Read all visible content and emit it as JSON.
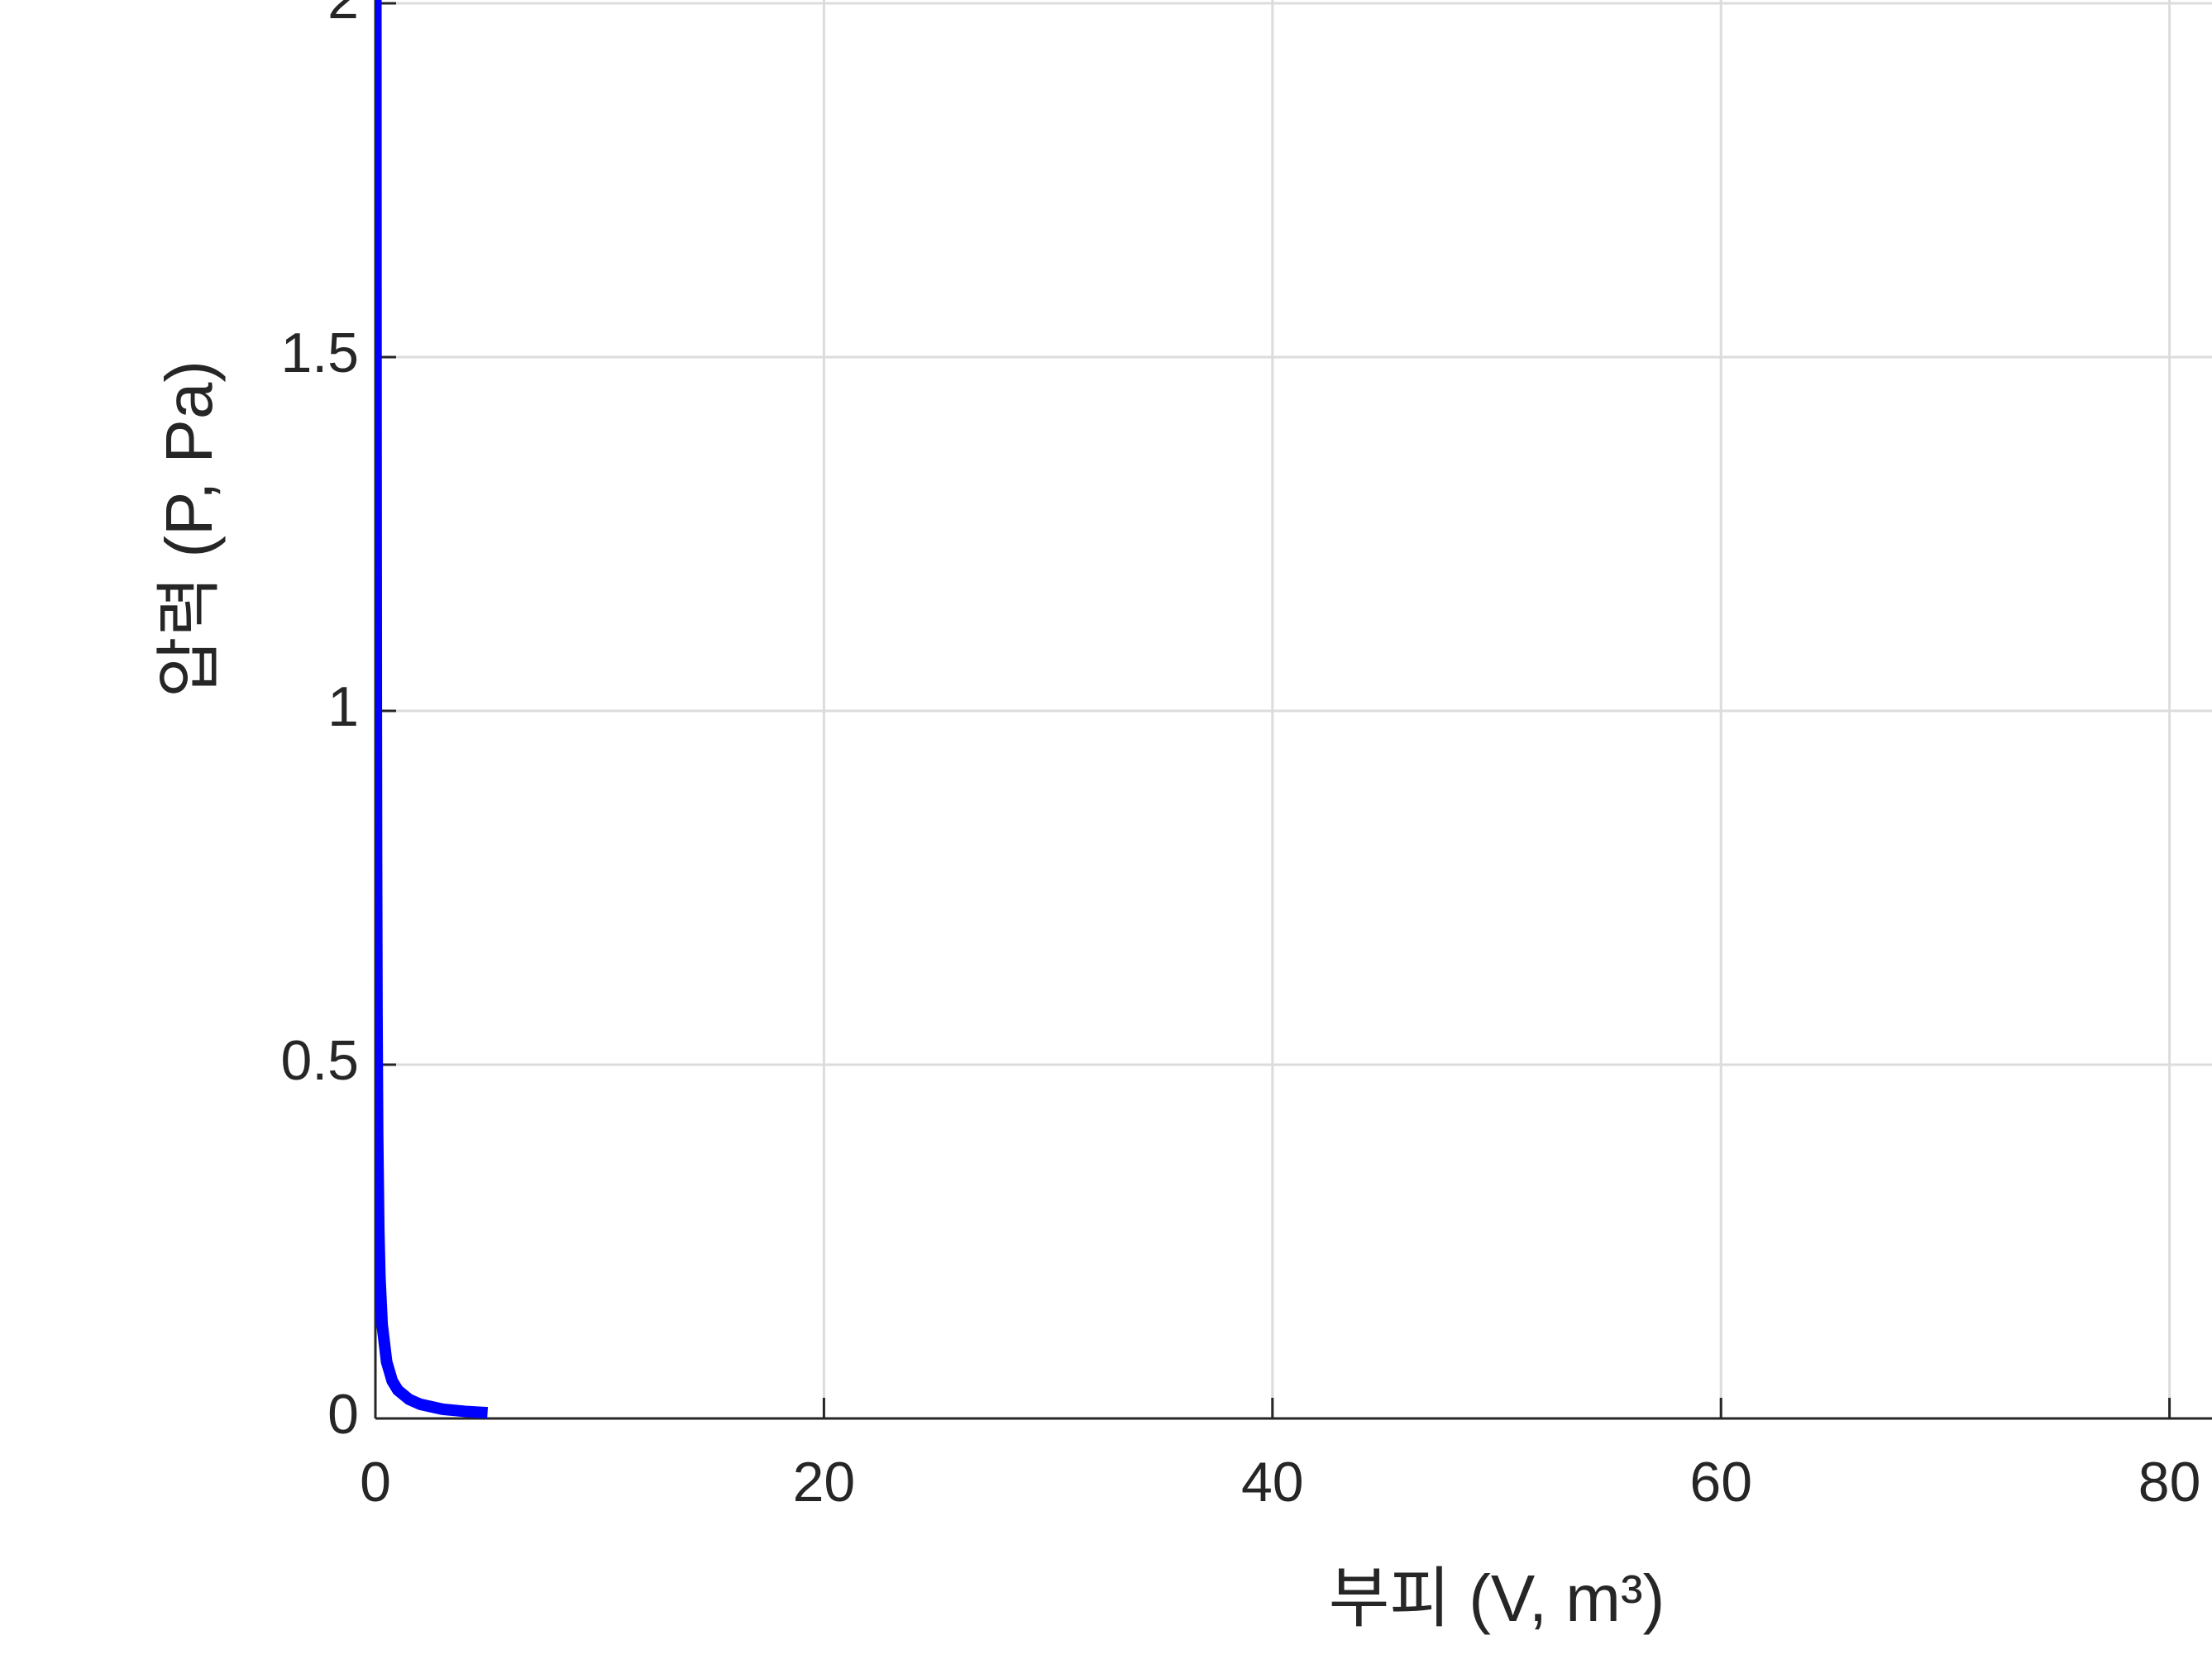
{
  "chart_data": {
    "type": "line",
    "xlabel": "부피 (V, m³)",
    "ylabel": "압력 (P, Pa)",
    "x": [
      0.01,
      0.02,
      0.025,
      0.03,
      0.04,
      0.05,
      0.07,
      0.1,
      0.15,
      0.2,
      0.3,
      0.5,
      0.75,
      1,
      1.5,
      2,
      3,
      4,
      5
    ],
    "series": [
      {
        "color": "#0000ff",
        "values": [
          4,
          2,
          1.6,
          1.333,
          1,
          0.8,
          0.571,
          0.4,
          0.267,
          0.2,
          0.133,
          0.08,
          0.053,
          0.04,
          0.027,
          0.02,
          0.013,
          0.01,
          0.008
        ]
      }
    ],
    "xlim": [
      0,
      100
    ],
    "ylim": [
      0,
      2.5
    ],
    "xticks": [
      0,
      20,
      40,
      60,
      80
    ],
    "yticks": [
      0,
      0.5,
      1,
      1.5,
      2
    ],
    "grid": true
  }
}
